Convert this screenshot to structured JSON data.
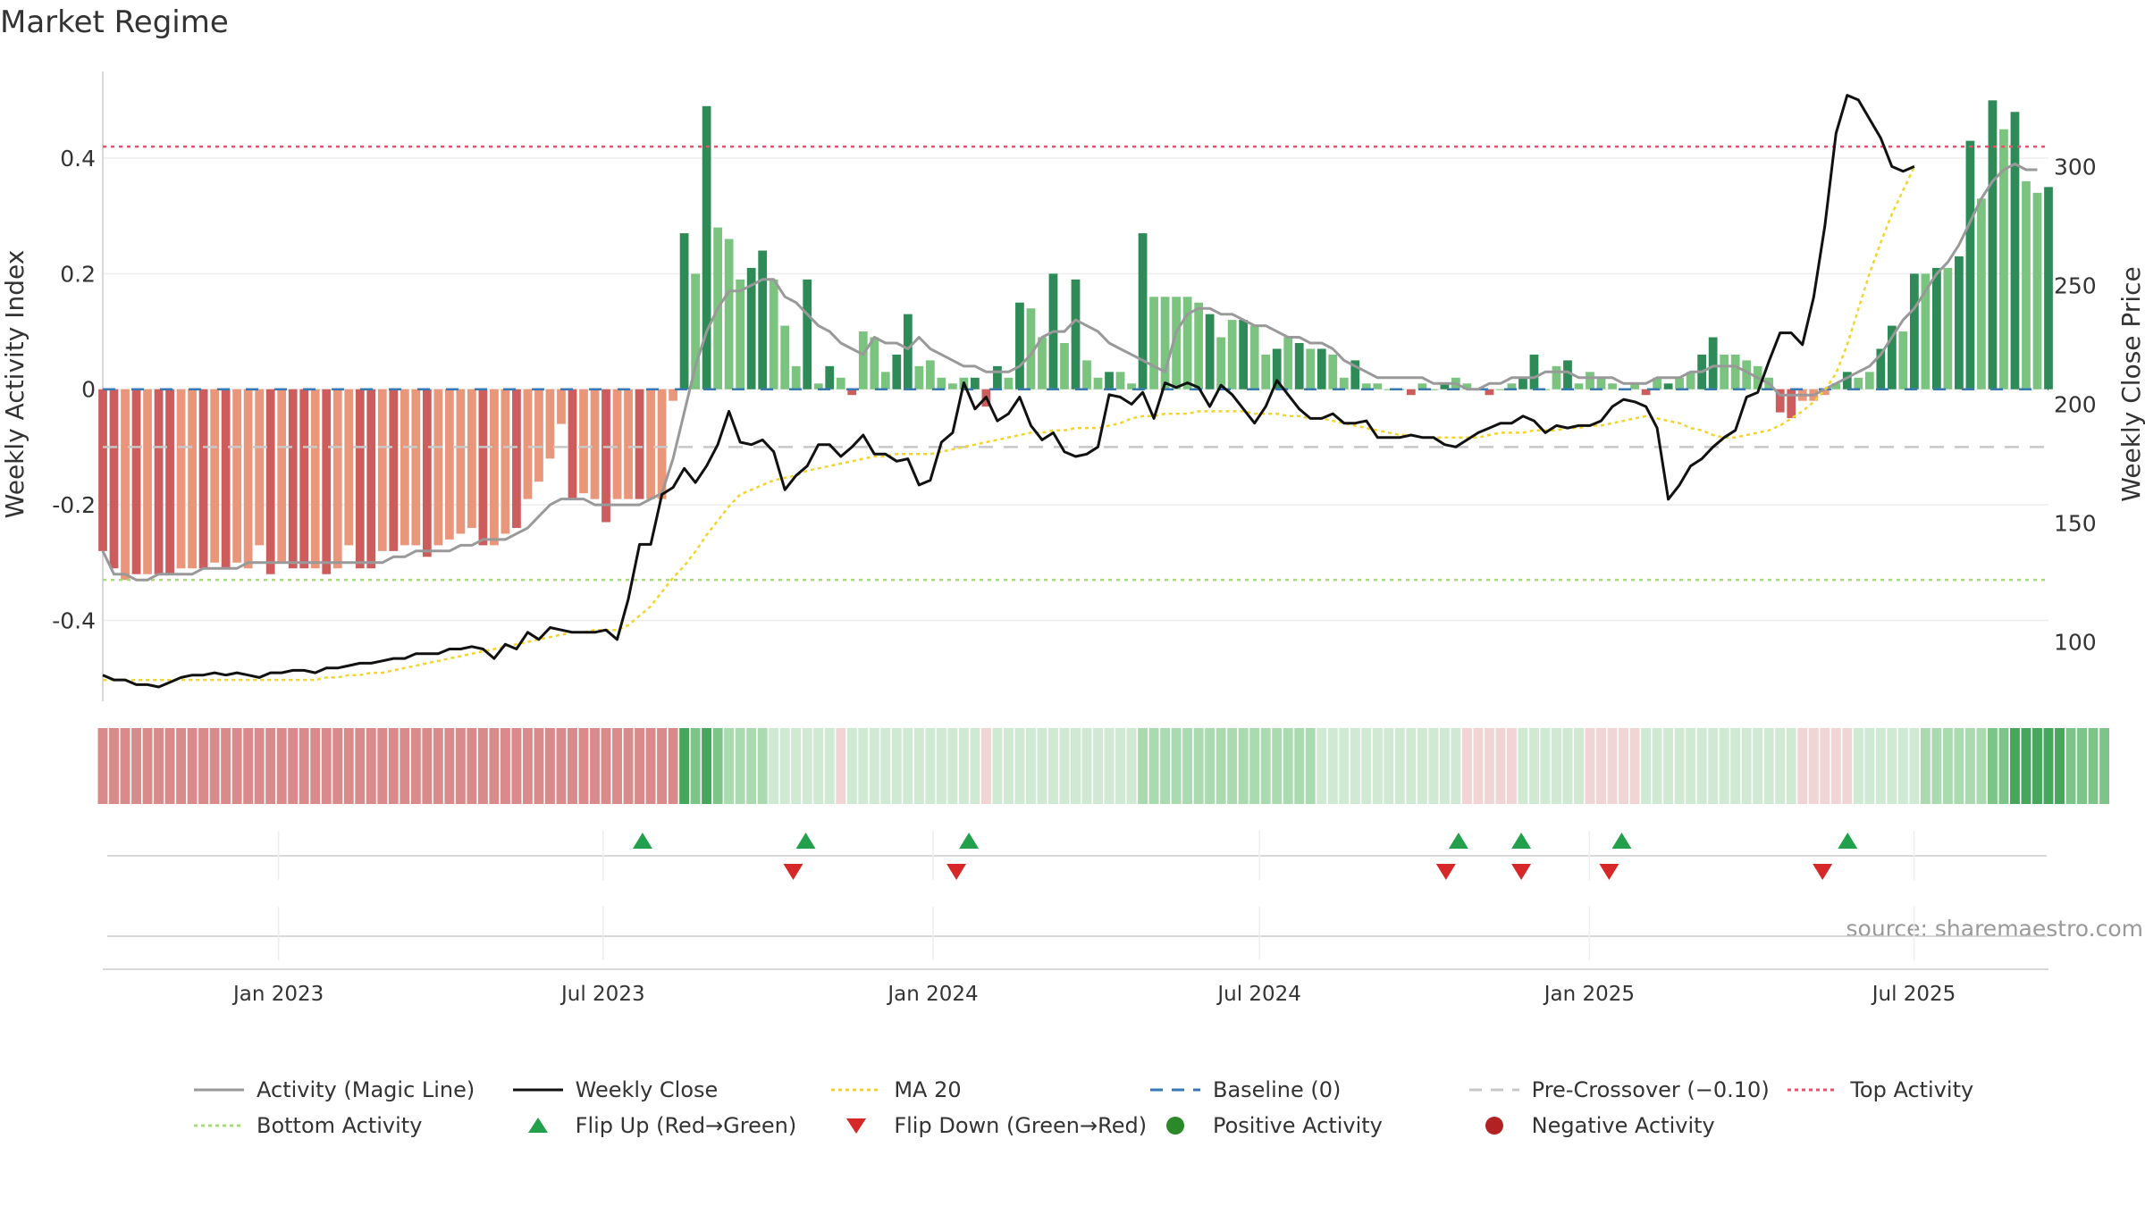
{
  "colors": {
    "strong_green": "#2e8b57",
    "light_green": "#7bc47f",
    "strong_red": "#cd5c5c",
    "light_red": "#e9967a",
    "magic_line": "#999999",
    "close_line": "#111111",
    "ma_line": "#f2d42a",
    "baseline": "#3a78b5",
    "precross": "#c8c8c8",
    "top": "#e8506e",
    "bottom": "#a8dc78",
    "flip_up": "#22a04b",
    "flip_down": "#d62828",
    "pos_marker": "#2a8a2a",
    "neg_marker": "#b22222"
  },
  "chart_data": {
    "type": "bar",
    "title": "Market Regime",
    "source": "source: sharemaestro.com",
    "xlabel": "",
    "y_left_label": "Weekly Activity Index",
    "y_right_label": "Weekly Close Price",
    "y_left_range": [
      -0.54,
      0.55
    ],
    "y_right_range": [
      75,
      340
    ],
    "y_left_ticks": [
      -0.4,
      -0.2,
      0,
      0.2,
      0.4
    ],
    "y_left_tick_labels": [
      "-0.4",
      "-0.2",
      "0",
      "0.2",
      "0.4"
    ],
    "y_right_ticks": [
      100,
      150,
      200,
      250,
      300
    ],
    "y_right_tick_labels": [
      "100",
      "150",
      "200",
      "250",
      "300"
    ],
    "x_ticks": [
      {
        "date": "2023-01-01",
        "label": "Jan 2023"
      },
      {
        "date": "2023-07-01",
        "label": "Jul 2023"
      },
      {
        "date": "2024-01-01",
        "label": "Jan 2024"
      },
      {
        "date": "2024-07-01",
        "label": "Jul 2024"
      },
      {
        "date": "2025-01-01",
        "label": "Jan 2025"
      },
      {
        "date": "2025-07-01",
        "label": "Jul 2025"
      }
    ],
    "start_date": "2022-09-25",
    "end_date": "2025-09-14",
    "top_activity": 0.42,
    "bottom_activity": -0.33,
    "pre_crossover": -0.1,
    "baseline": 0,
    "activity_key": [
      [
        -0.28,
        "sr"
      ],
      [
        -0.31,
        "sr"
      ],
      [
        -0.33,
        "lr"
      ],
      [
        -0.32,
        "sr"
      ],
      [
        -0.32,
        "lr"
      ],
      [
        -0.32,
        "sr"
      ],
      [
        -0.32,
        "sr"
      ],
      [
        -0.31,
        "lr"
      ],
      [
        -0.31,
        "lr"
      ],
      [
        -0.31,
        "sr"
      ],
      [
        -0.3,
        "lr"
      ],
      [
        -0.31,
        "sr"
      ],
      [
        -0.3,
        "lr"
      ],
      [
        -0.31,
        "lr"
      ],
      [
        -0.27,
        "lr"
      ],
      [
        -0.32,
        "sr"
      ],
      [
        -0.3,
        "lr"
      ],
      [
        -0.31,
        "sr"
      ],
      [
        -0.31,
        "sr"
      ],
      [
        -0.31,
        "lr"
      ],
      [
        -0.32,
        "sr"
      ],
      [
        -0.31,
        "lr"
      ],
      [
        -0.27,
        "lr"
      ],
      [
        -0.31,
        "sr"
      ],
      [
        -0.31,
        "sr"
      ],
      [
        -0.28,
        "lr"
      ],
      [
        -0.28,
        "sr"
      ],
      [
        -0.27,
        "lr"
      ],
      [
        -0.27,
        "lr"
      ],
      [
        -0.29,
        "sr"
      ],
      [
        -0.27,
        "lr"
      ],
      [
        -0.26,
        "lr"
      ],
      [
        -0.25,
        "lr"
      ],
      [
        -0.24,
        "lr"
      ],
      [
        -0.27,
        "sr"
      ],
      [
        -0.27,
        "lr"
      ],
      [
        -0.25,
        "lr"
      ],
      [
        -0.24,
        "sr"
      ],
      [
        -0.19,
        "lr"
      ],
      [
        -0.16,
        "lr"
      ],
      [
        -0.12,
        "lr"
      ],
      [
        -0.06,
        "lr"
      ],
      [
        -0.19,
        "sr"
      ],
      [
        -0.18,
        "lr"
      ],
      [
        -0.19,
        "lr"
      ],
      [
        -0.23,
        "sr"
      ],
      [
        -0.19,
        "lr"
      ],
      [
        -0.19,
        "lr"
      ],
      [
        -0.19,
        "sr"
      ],
      [
        -0.19,
        "lr"
      ],
      [
        -0.19,
        "lr"
      ],
      [
        -0.02,
        "lr"
      ],
      [
        0.27,
        "sg"
      ],
      [
        0.2,
        "lg"
      ],
      [
        0.49,
        "sg"
      ],
      [
        0.28,
        "lg"
      ],
      [
        0.26,
        "lg"
      ],
      [
        0.19,
        "lg"
      ],
      [
        0.21,
        "sg"
      ],
      [
        0.24,
        "sg"
      ],
      [
        0.19,
        "lg"
      ],
      [
        0.11,
        "lg"
      ],
      [
        0.04,
        "lg"
      ],
      [
        0.19,
        "sg"
      ],
      [
        0.01,
        "lg"
      ],
      [
        0.04,
        "sg"
      ],
      [
        0.02,
        "lg"
      ],
      [
        -0.01,
        "sr"
      ],
      [
        0.1,
        "lg"
      ],
      [
        0.09,
        "lg"
      ],
      [
        0.03,
        "lg"
      ],
      [
        0.06,
        "sg"
      ],
      [
        0.13,
        "sg"
      ],
      [
        0.04,
        "lg"
      ],
      [
        0.05,
        "lg"
      ],
      [
        0.02,
        "lg"
      ],
      [
        0.01,
        "lg"
      ],
      [
        0.02,
        "lg"
      ],
      [
        0.02,
        "sg"
      ],
      [
        -0.03,
        "sr"
      ],
      [
        0.04,
        "sg"
      ],
      [
        0.02,
        "lg"
      ],
      [
        0.15,
        "sg"
      ],
      [
        0.14,
        "lg"
      ],
      [
        0.09,
        "lg"
      ],
      [
        0.2,
        "sg"
      ],
      [
        0.08,
        "lg"
      ],
      [
        0.19,
        "sg"
      ],
      [
        0.05,
        "lg"
      ],
      [
        0.02,
        "lg"
      ],
      [
        0.03,
        "sg"
      ],
      [
        0.03,
        "lg"
      ],
      [
        0.01,
        "lg"
      ],
      [
        0.27,
        "sg"
      ],
      [
        0.16,
        "lg"
      ],
      [
        0.16,
        "lg"
      ],
      [
        0.16,
        "lg"
      ],
      [
        0.16,
        "lg"
      ],
      [
        0.15,
        "lg"
      ],
      [
        0.13,
        "sg"
      ],
      [
        0.09,
        "lg"
      ],
      [
        0.12,
        "lg"
      ],
      [
        0.12,
        "sg"
      ],
      [
        0.11,
        "lg"
      ],
      [
        0.06,
        "lg"
      ],
      [
        0.07,
        "sg"
      ],
      [
        0.09,
        "lg"
      ],
      [
        0.08,
        "sg"
      ],
      [
        0.07,
        "lg"
      ],
      [
        0.07,
        "sg"
      ],
      [
        0.06,
        "lg"
      ],
      [
        0.02,
        "lg"
      ],
      [
        0.05,
        "sg"
      ],
      [
        0.01,
        "lg"
      ],
      [
        0.01,
        "lg"
      ],
      [
        0.0,
        "lg"
      ],
      [
        0.0,
        "lg"
      ],
      [
        -0.01,
        "sr"
      ],
      [
        0.01,
        "lg"
      ],
      [
        0.0,
        "lg"
      ],
      [
        0.01,
        "sg"
      ],
      [
        0.02,
        "lg"
      ],
      [
        0.01,
        "lg"
      ],
      [
        0.0,
        "lg"
      ],
      [
        -0.01,
        "sr"
      ],
      [
        0.0,
        "lg"
      ],
      [
        0.01,
        "lg"
      ],
      [
        0.02,
        "sg"
      ],
      [
        0.06,
        "sg"
      ],
      [
        0.0,
        "lg"
      ],
      [
        0.04,
        "lg"
      ],
      [
        0.05,
        "sg"
      ],
      [
        0.01,
        "lg"
      ],
      [
        0.03,
        "lg"
      ],
      [
        0.02,
        "lg"
      ],
      [
        0.01,
        "lg"
      ],
      [
        0.0,
        "lg"
      ],
      [
        0.01,
        "lg"
      ],
      [
        -0.01,
        "sr"
      ],
      [
        0.02,
        "lg"
      ],
      [
        0.01,
        "sg"
      ],
      [
        0.02,
        "lg"
      ],
      [
        0.03,
        "lg"
      ],
      [
        0.06,
        "sg"
      ],
      [
        0.09,
        "sg"
      ],
      [
        0.06,
        "lg"
      ],
      [
        0.06,
        "lg"
      ],
      [
        0.05,
        "lg"
      ],
      [
        0.04,
        "lg"
      ],
      [
        0.02,
        "lg"
      ],
      [
        -0.04,
        "sr"
      ],
      [
        -0.05,
        "sr"
      ],
      [
        -0.02,
        "lr"
      ],
      [
        -0.02,
        "lr"
      ],
      [
        -0.01,
        "lr"
      ],
      [
        0.01,
        "lg"
      ],
      [
        0.03,
        "sg"
      ],
      [
        0.02,
        "lg"
      ],
      [
        0.03,
        "lg"
      ],
      [
        0.07,
        "sg"
      ],
      [
        0.11,
        "sg"
      ],
      [
        0.1,
        "lg"
      ],
      [
        0.2,
        "sg"
      ],
      [
        0.2,
        "lg"
      ],
      [
        0.21,
        "sg"
      ],
      [
        0.21,
        "lg"
      ],
      [
        0.23,
        "sg"
      ],
      [
        0.43,
        "sg"
      ],
      [
        0.33,
        "lg"
      ],
      [
        0.5,
        "sg"
      ],
      [
        0.45,
        "lg"
      ],
      [
        0.48,
        "sg"
      ],
      [
        0.36,
        "lg"
      ],
      [
        0.34,
        "lg"
      ],
      [
        0.35,
        "sg"
      ]
    ],
    "magic_line": [
      -0.28,
      -0.32,
      -0.32,
      -0.33,
      -0.33,
      -0.32,
      -0.32,
      -0.32,
      -0.32,
      -0.31,
      -0.31,
      -0.31,
      -0.31,
      -0.3,
      -0.3,
      -0.3,
      -0.3,
      -0.3,
      -0.3,
      -0.3,
      -0.3,
      -0.3,
      -0.3,
      -0.3,
      -0.3,
      -0.3,
      -0.29,
      -0.29,
      -0.28,
      -0.28,
      -0.28,
      -0.28,
      -0.27,
      -0.27,
      -0.26,
      -0.26,
      -0.26,
      -0.25,
      -0.24,
      -0.22,
      -0.2,
      -0.19,
      -0.19,
      -0.19,
      -0.2,
      -0.2,
      -0.2,
      -0.2,
      -0.2,
      -0.19,
      -0.18,
      -0.12,
      -0.04,
      0.04,
      0.1,
      0.14,
      0.17,
      0.17,
      0.18,
      0.19,
      0.19,
      0.16,
      0.15,
      0.13,
      0.11,
      0.1,
      0.08,
      0.07,
      0.06,
      0.09,
      0.08,
      0.08,
      0.07,
      0.09,
      0.07,
      0.06,
      0.05,
      0.04,
      0.04,
      0.03,
      0.03,
      0.03,
      0.04,
      0.06,
      0.09,
      0.1,
      0.1,
      0.12,
      0.11,
      0.1,
      0.08,
      0.07,
      0.06,
      0.05,
      0.04,
      0.03,
      0.1,
      0.13,
      0.14,
      0.14,
      0.13,
      0.13,
      0.12,
      0.11,
      0.11,
      0.1,
      0.09,
      0.09,
      0.08,
      0.08,
      0.07,
      0.05,
      0.04,
      0.03,
      0.02,
      0.02,
      0.02,
      0.02,
      0.02,
      0.01,
      0.01,
      0.01,
      0.0,
      0.0,
      0.01,
      0.01,
      0.02,
      0.02,
      0.02,
      0.03,
      0.03,
      0.03,
      0.02,
      0.02,
      0.02,
      0.02,
      0.01,
      0.01,
      0.01,
      0.02,
      0.02,
      0.02,
      0.03,
      0.03,
      0.04,
      0.04,
      0.04,
      0.03,
      0.02,
      0.01,
      -0.01,
      -0.01,
      -0.01,
      -0.01,
      0.0,
      0.01,
      0.02,
      0.03,
      0.04,
      0.06,
      0.09,
      0.12,
      0.14,
      0.17,
      0.2,
      0.22,
      0.25,
      0.29,
      0.33,
      0.36,
      0.38,
      0.39,
      0.38,
      0.38
    ],
    "weekly_close": [
      86,
      84,
      84,
      82,
      82,
      81,
      83,
      85,
      86,
      86,
      87,
      86,
      87,
      86,
      85,
      87,
      87,
      88,
      88,
      87,
      89,
      89,
      90,
      91,
      91,
      92,
      93,
      93,
      95,
      95,
      95,
      97,
      97,
      98,
      97,
      93,
      99,
      97,
      104,
      101,
      106,
      105,
      104,
      104,
      104,
      105,
      101,
      118,
      141,
      141,
      162,
      165,
      173,
      167,
      174,
      183,
      197,
      184,
      183,
      185,
      180,
      164,
      170,
      174,
      183,
      183,
      178,
      182,
      187,
      179,
      179,
      176,
      177,
      166,
      168,
      184,
      188,
      209,
      198,
      203,
      193,
      196,
      203,
      191,
      185,
      188,
      180,
      178,
      179,
      182,
      204,
      203,
      200,
      205,
      194,
      209,
      207,
      209,
      207,
      199,
      208,
      204,
      198,
      192,
      199,
      210,
      204,
      198,
      194,
      194,
      196,
      192,
      192,
      193,
      186,
      186,
      186,
      187,
      186,
      186,
      183,
      182,
      185,
      188,
      190,
      192,
      192,
      195,
      193,
      188,
      191,
      190,
      191,
      191,
      193,
      199,
      202,
      201,
      199,
      190,
      160,
      166,
      174,
      177,
      182,
      186,
      189,
      203,
      205,
      218,
      230,
      230,
      225,
      245,
      275,
      314,
      330,
      328,
      320,
      312,
      300,
      298,
      300
    ],
    "ma20": [
      84,
      84,
      84,
      84,
      84,
      84,
      84,
      84,
      84,
      84,
      84,
      84,
      84,
      84,
      84,
      84,
      84,
      84,
      84,
      84,
      85,
      85,
      86,
      86,
      87,
      87,
      88,
      89,
      90,
      91,
      92,
      93,
      94,
      95,
      96,
      97,
      98,
      99,
      100,
      101,
      102,
      103,
      104,
      104,
      105,
      105,
      105,
      107,
      111,
      115,
      121,
      127,
      132,
      138,
      145,
      151,
      157,
      162,
      164,
      166,
      168,
      169,
      170,
      172,
      173,
      174,
      175,
      176,
      177,
      178,
      178,
      179,
      179,
      179,
      179,
      180,
      181,
      182,
      183,
      184,
      185,
      186,
      187,
      188,
      188,
      189,
      189,
      190,
      190,
      190,
      191,
      192,
      194,
      195,
      195,
      196,
      196,
      196,
      197,
      197,
      197,
      197,
      197,
      196,
      196,
      196,
      195,
      195,
      194,
      194,
      193,
      192,
      191,
      190,
      189,
      188,
      187,
      187,
      186,
      186,
      186,
      186,
      186,
      186,
      187,
      188,
      188,
      188,
      189,
      189,
      189,
      190,
      190,
      191,
      191,
      192,
      193,
      194,
      195,
      194,
      193,
      192,
      190,
      189,
      187,
      186,
      186,
      187,
      188,
      189,
      191,
      194,
      197,
      201,
      206,
      213,
      225,
      240,
      255,
      268,
      280,
      290,
      300
    ],
    "regime_strip": [
      2,
      2,
      2,
      2,
      2,
      2,
      2,
      2,
      2,
      2,
      2,
      2,
      2,
      2,
      2,
      2,
      2,
      2,
      2,
      2,
      2,
      2,
      2,
      2,
      2,
      2,
      2,
      2,
      2,
      2,
      2,
      2,
      2,
      2,
      2,
      2,
      2,
      2,
      2,
      2,
      2,
      2,
      2,
      2,
      2,
      2,
      2,
      2,
      2,
      2,
      2,
      2,
      6,
      5,
      6,
      5,
      4,
      4,
      4,
      4,
      3,
      3,
      3,
      3,
      3,
      3,
      1,
      3,
      3,
      3,
      3,
      3,
      3,
      3,
      3,
      3,
      3,
      3,
      3,
      1,
      3,
      3,
      3,
      3,
      3,
      3,
      3,
      3,
      3,
      3,
      3,
      3,
      3,
      4,
      4,
      4,
      4,
      4,
      4,
      4,
      4,
      4,
      4,
      4,
      4,
      4,
      4,
      4,
      4,
      3,
      3,
      3,
      3,
      3,
      3,
      3,
      3,
      3,
      3,
      3,
      3,
      3,
      1,
      1,
      1,
      1,
      1,
      3,
      3,
      3,
      3,
      3,
      3,
      1,
      1,
      1,
      1,
      1,
      3,
      3,
      3,
      3,
      3,
      3,
      3,
      3,
      3,
      3,
      3,
      3,
      3,
      3,
      1,
      1,
      1,
      1,
      1,
      3,
      3,
      3,
      3,
      3,
      3,
      4,
      4,
      4,
      4,
      4,
      4,
      5,
      5,
      6,
      6,
      6,
      6,
      6,
      5,
      5,
      5,
      5
    ],
    "flip_up": [
      "2023-07-23",
      "2023-10-22",
      "2024-01-21",
      "2024-10-20",
      "2024-11-24",
      "2025-01-19",
      "2025-05-25"
    ],
    "flip_down": [
      "2023-10-15",
      "2024-01-14",
      "2024-10-13",
      "2024-11-24",
      "2025-01-12",
      "2025-05-11"
    ]
  },
  "legend": [
    {
      "label": "Activity (Magic Line)",
      "key": "line",
      "color": "#999999",
      "dash": ""
    },
    {
      "label": "Weekly Close",
      "key": "line",
      "color": "#111111",
      "dash": ""
    },
    {
      "label": "MA 20",
      "key": "line",
      "color": "#f2d42a",
      "dash": "4,4"
    },
    {
      "label": "Baseline (0)",
      "key": "line",
      "color": "#3a78b5",
      "dash": "14,10"
    },
    {
      "label": "Pre-Crossover (−0.10)",
      "key": "line",
      "color": "#c8c8c8",
      "dash": "14,10"
    },
    {
      "label": "Top Activity",
      "key": "line",
      "color": "#e8506e",
      "dash": "4,4"
    },
    {
      "label": "Bottom Activity",
      "key": "line",
      "color": "#a8dc78",
      "dash": "4,4"
    },
    {
      "label": "Flip Up (Red→Green)",
      "key": "tri-up",
      "color": "#22a04b",
      "dash": ""
    },
    {
      "label": "Flip Down (Green→Red)",
      "key": "tri-down",
      "color": "#d62828",
      "dash": ""
    },
    {
      "label": "Positive Activity",
      "key": "dot",
      "color": "#2a8a2a",
      "dash": ""
    },
    {
      "label": "Negative Activity",
      "key": "dot",
      "color": "#b22222",
      "dash": ""
    }
  ]
}
